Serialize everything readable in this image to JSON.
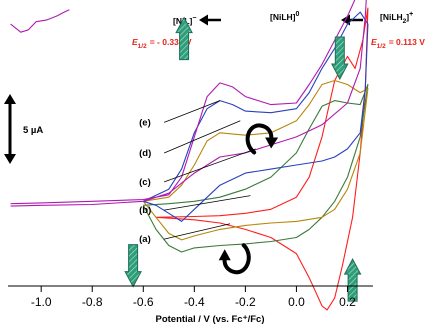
{
  "chart_data": {
    "type": "line",
    "title": "",
    "xlabel": "Potential / V (vs. Fc⁺/Fc)",
    "ylabel": "",
    "xlim": [
      -1.13,
      0.3
    ],
    "x_ticks": [
      "-1.0",
      "-0.8",
      "-0.6",
      "-0.4",
      "-0.2",
      "0.0",
      "0.2"
    ],
    "x_tick_values": [
      -1.0,
      -0.8,
      -0.6,
      -0.4,
      -0.2,
      0.0,
      0.2
    ],
    "ylim": [
      -31,
      9
    ],
    "grid": false,
    "current_units": "µA",
    "scale_bar": {
      "label": "5 µA",
      "value": 5,
      "y_from": -5,
      "y_to": 0
    },
    "species": [
      {
        "name": "[NiL]",
        "charge": "−",
        "e_half_label": "E",
        "e_half_sub": "1/2",
        "e_half_value": "= - 0.338 V"
      },
      {
        "name": "[NiLH]",
        "charge": "0",
        "e_half_label": "",
        "e_half_sub": "",
        "e_half_value": ""
      },
      {
        "name": "[NiLH",
        "sub": "2",
        "charge": "+",
        "close": "]",
        "e_half_label": "E",
        "e_half_sub": "1/2",
        "e_half_value": "= 0.113 V"
      }
    ],
    "series": [
      {
        "name": "(a)",
        "color": "#ff1e1e",
        "forward": [
          [
            -0.55,
            -18.0
          ],
          [
            -0.4,
            -17.9
          ],
          [
            -0.3,
            -17.8
          ],
          [
            -0.2,
            -17.5
          ],
          [
            -0.1,
            -17.0
          ],
          [
            0.0,
            -15.5
          ],
          [
            0.05,
            -13.0
          ],
          [
            0.1,
            -8.0
          ],
          [
            0.15,
            -1.0
          ],
          [
            0.2,
            2.0
          ],
          [
            0.23,
            0.5
          ],
          [
            0.26,
            4.0
          ],
          [
            0.28,
            8.0
          ]
        ],
        "reverse": [
          [
            0.28,
            8.0
          ],
          [
            0.27,
            -2.0
          ],
          [
            0.25,
            -10.0
          ],
          [
            0.22,
            -18.0
          ],
          [
            0.18,
            -24.0
          ],
          [
            0.15,
            -28.0
          ],
          [
            0.12,
            -29.5
          ],
          [
            0.1,
            -29.0
          ],
          [
            0.05,
            -25.5
          ],
          [
            0.0,
            -22.5
          ],
          [
            -0.1,
            -20.5
          ],
          [
            -0.2,
            -19.5
          ],
          [
            -0.3,
            -18.7
          ],
          [
            -0.4,
            -18.3
          ],
          [
            -0.55,
            -18.0
          ]
        ]
      },
      {
        "name": "(b)",
        "color": "#3a7a3a",
        "forward": [
          [
            -0.6,
            -16.5
          ],
          [
            -0.5,
            -16.3
          ],
          [
            -0.4,
            -16.0
          ],
          [
            -0.3,
            -15.5
          ],
          [
            -0.2,
            -14.5
          ],
          [
            -0.1,
            -13.0
          ],
          [
            0.0,
            -10.0
          ],
          [
            0.05,
            -7.0
          ],
          [
            0.1,
            -4.2
          ],
          [
            0.15,
            -3.5
          ],
          [
            0.2,
            -3.8
          ],
          [
            0.25,
            -4.0
          ],
          [
            0.28,
            -1.5
          ]
        ],
        "reverse": [
          [
            0.28,
            -1.5
          ],
          [
            0.25,
            -8.0
          ],
          [
            0.2,
            -13.0
          ],
          [
            0.15,
            -16.0
          ],
          [
            0.1,
            -18.0
          ],
          [
            0.05,
            -19.5
          ],
          [
            0.0,
            -20.5
          ],
          [
            -0.1,
            -21.0
          ],
          [
            -0.2,
            -21.3
          ],
          [
            -0.3,
            -21.5
          ],
          [
            -0.4,
            -21.8
          ],
          [
            -0.45,
            -22.3
          ],
          [
            -0.5,
            -21.5
          ],
          [
            -0.55,
            -19.5
          ],
          [
            -0.6,
            -16.5
          ]
        ]
      },
      {
        "name": "(c)",
        "color": "#b8860b",
        "forward": [
          [
            -0.6,
            -16.0
          ],
          [
            -0.5,
            -15.5
          ],
          [
            -0.45,
            -14.0
          ],
          [
            -0.4,
            -11.5
          ],
          [
            -0.35,
            -8.5
          ],
          [
            -0.3,
            -7.5
          ],
          [
            -0.2,
            -7.8
          ],
          [
            -0.1,
            -7.5
          ],
          [
            0.0,
            -6.0
          ],
          [
            0.05,
            -4.0
          ],
          [
            0.1,
            -1.5
          ],
          [
            0.15,
            -1.0
          ],
          [
            0.2,
            -1.5
          ],
          [
            0.25,
            -2.5
          ],
          [
            0.28,
            -2.0
          ]
        ],
        "reverse": [
          [
            0.28,
            -2.0
          ],
          [
            0.25,
            -10.0
          ],
          [
            0.2,
            -14.5
          ],
          [
            0.15,
            -17.0
          ],
          [
            0.1,
            -18.0
          ],
          [
            0.0,
            -18.5
          ],
          [
            -0.1,
            -18.7
          ],
          [
            -0.2,
            -19.0
          ],
          [
            -0.3,
            -19.5
          ],
          [
            -0.4,
            -20.3
          ],
          [
            -0.45,
            -20.8
          ],
          [
            -0.5,
            -20.0
          ],
          [
            -0.55,
            -18.0
          ],
          [
            -0.6,
            -16.0
          ]
        ]
      },
      {
        "name": "(d)",
        "color": "#2a3fbf",
        "forward": [
          [
            -0.6,
            -16.0
          ],
          [
            -0.5,
            -14.5
          ],
          [
            -0.45,
            -12.0
          ],
          [
            -0.4,
            -7.5
          ],
          [
            -0.35,
            -4.5
          ],
          [
            -0.3,
            -3.5
          ],
          [
            -0.25,
            -4.0
          ],
          [
            -0.2,
            -4.8
          ],
          [
            -0.1,
            -5.0
          ],
          [
            0.0,
            -4.5
          ],
          [
            0.05,
            -2.5
          ],
          [
            0.1,
            0.5
          ],
          [
            0.15,
            3.0
          ],
          [
            0.2,
            6.0
          ],
          [
            0.25,
            7.5
          ],
          [
            0.28,
            6.0
          ]
        ],
        "reverse": [
          [
            0.28,
            6.0
          ],
          [
            0.27,
            -2.0
          ],
          [
            0.25,
            -7.5
          ],
          [
            0.2,
            -9.5
          ],
          [
            0.15,
            -10.5
          ],
          [
            0.1,
            -11.0
          ],
          [
            0.0,
            -11.5
          ],
          [
            -0.1,
            -12.0
          ],
          [
            -0.2,
            -12.5
          ],
          [
            -0.3,
            -14.0
          ],
          [
            -0.4,
            -17.0
          ],
          [
            -0.45,
            -18.5
          ],
          [
            -0.5,
            -17.5
          ],
          [
            -0.55,
            -16.5
          ],
          [
            -0.6,
            -16.0
          ]
        ]
      },
      {
        "name": "(e)",
        "color": "#b01ab0",
        "forward": [
          [
            -1.12,
            -16.3
          ],
          [
            -1.0,
            -16.2
          ],
          [
            -0.8,
            -16.0
          ],
          [
            -0.7,
            -15.9
          ],
          [
            -0.6,
            -15.8
          ],
          [
            -0.5,
            -15.2
          ],
          [
            -0.45,
            -13.0
          ],
          [
            -0.4,
            -8.0
          ],
          [
            -0.35,
            -3.0
          ],
          [
            -0.3,
            -1.3
          ],
          [
            -0.25,
            -1.8
          ],
          [
            -0.2,
            -3.0
          ],
          [
            -0.1,
            -4.0
          ],
          [
            0.0,
            -3.8
          ],
          [
            0.05,
            -1.5
          ],
          [
            0.1,
            1.0
          ],
          [
            0.15,
            4.0
          ],
          [
            0.2,
            7.0
          ],
          [
            0.25,
            10.5
          ],
          [
            0.28,
            12.5
          ]
        ],
        "reverse": [
          [
            0.28,
            12.5
          ],
          [
            0.27,
            7.0
          ],
          [
            0.25,
            0.5
          ],
          [
            0.2,
            -3.8
          ],
          [
            0.1,
            -6.5
          ],
          [
            0.0,
            -8.0
          ],
          [
            -0.1,
            -9.0
          ],
          [
            -0.2,
            -10.0
          ],
          [
            -0.3,
            -10.5
          ],
          [
            -0.4,
            -12.5
          ],
          [
            -0.5,
            -15.0
          ],
          [
            -0.6,
            -16.0
          ],
          [
            -0.8,
            -16.4
          ],
          [
            -1.0,
            -16.5
          ],
          [
            -1.12,
            -16.6
          ]
        ]
      }
    ],
    "inset_trace": [
      [
        -1.12,
        6.0
      ],
      [
        -1.08,
        5.0
      ],
      [
        -1.05,
        5.3
      ],
      [
        -1.02,
        6.3
      ],
      [
        -0.98,
        6.5
      ],
      [
        -0.94,
        7.0
      ],
      [
        -0.91,
        7.5
      ],
      [
        -0.89,
        7.8
      ]
    ],
    "curve_label_anchors": [
      {
        "series": "(e)",
        "label": [
          -0.53,
          -6.2
        ],
        "end": [
          -0.3,
          -3.5
        ]
      },
      {
        "series": "(d)",
        "label": [
          -0.53,
          -10.0
        ],
        "end": [
          -0.22,
          -6.0
        ]
      },
      {
        "series": "(c)",
        "label": [
          -0.53,
          -13.6
        ],
        "end": [
          -0.16,
          -9.5
        ]
      },
      {
        "series": "(b)",
        "label": [
          -0.53,
          -17.1
        ],
        "end": [
          -0.18,
          -15.3
        ]
      },
      {
        "series": "(a)",
        "label": [
          -0.53,
          -20.7
        ],
        "end": [
          -0.26,
          -18.8
        ]
      }
    ],
    "process_arrows": [
      {
        "dir": "up",
        "at": [
          -0.44,
          4.2
        ],
        "color": "#2e9e7a"
      },
      {
        "dir": "down",
        "at": [
          0.17,
          1.8
        ],
        "color": "#2e9e7a"
      },
      {
        "dir": "down",
        "at": [
          -0.64,
          -24.0
        ],
        "color": "#2e9e7a"
      },
      {
        "dir": "up",
        "at": [
          0.22,
          -25.8
        ],
        "color": "#2e9e7a"
      }
    ],
    "rotation_arrows": [
      {
        "dir": "cw",
        "at": [
          -0.15,
          -8.2
        ]
      },
      {
        "dir": "ccw",
        "at": [
          -0.23,
          -23.2
        ]
      }
    ],
    "legend": "none"
  }
}
